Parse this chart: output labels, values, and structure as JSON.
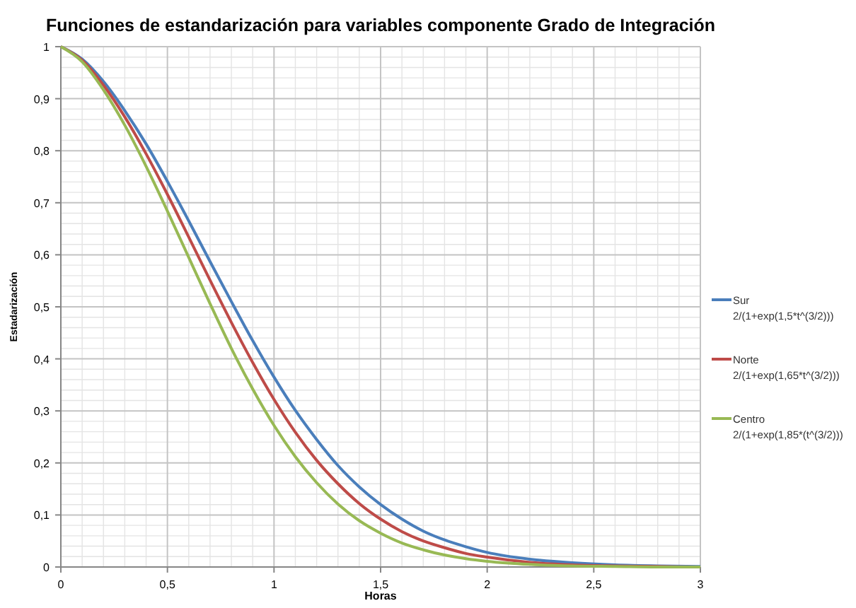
{
  "chart_data": {
    "type": "line",
    "title": "Funciones de estandarización para variables componente Grado de Integración",
    "xlabel": "Horas",
    "ylabel": "Estadarización",
    "x": [
      0,
      0.1,
      0.2,
      0.3,
      0.4,
      0.5,
      0.6,
      0.7,
      0.8,
      0.9,
      1,
      1.1,
      1.2,
      1.3,
      1.4,
      1.5,
      1.6,
      1.7,
      1.8,
      1.9,
      2,
      2.2,
      2.4,
      2.6,
      2.8,
      3
    ],
    "series": [
      {
        "name": "Sur\n2/(1+exp(1,5*t^(3/2)))",
        "color": "#4a7ebb",
        "values": [
          1,
          0.976,
          0.933,
          0.877,
          0.813,
          0.741,
          0.665,
          0.587,
          0.51,
          0.435,
          0.365,
          0.301,
          0.245,
          0.195,
          0.154,
          0.12,
          0.092,
          0.069,
          0.052,
          0.039,
          0.028,
          0.015,
          0.008,
          0.004,
          0.002,
          0.001
        ]
      },
      {
        "name": "Norte\n2/(1+exp(1,65*t^(3/2)))",
        "color": "#be4b48",
        "values": [
          1,
          0.974,
          0.926,
          0.865,
          0.794,
          0.716,
          0.634,
          0.551,
          0.47,
          0.393,
          0.322,
          0.259,
          0.205,
          0.16,
          0.122,
          0.092,
          0.068,
          0.05,
          0.037,
          0.026,
          0.019,
          0.009,
          0.004,
          0.002,
          0.001,
          0
        ]
      },
      {
        "name": "Centro\n2/(1+exp(1,85*(t^(3/2)))",
        "color": "#98b954",
        "values": [
          1,
          0.971,
          0.917,
          0.849,
          0.77,
          0.684,
          0.595,
          0.506,
          0.42,
          0.342,
          0.272,
          0.212,
          0.162,
          0.121,
          0.089,
          0.065,
          0.046,
          0.033,
          0.023,
          0.016,
          0.011,
          0.005,
          0.002,
          0.001,
          0,
          0
        ]
      }
    ],
    "xlim": [
      0,
      3
    ],
    "xticks": [
      {
        "value": 0,
        "label": "0"
      },
      {
        "value": 0.5,
        "label": "0,5"
      },
      {
        "value": 1,
        "label": "1"
      },
      {
        "value": 1.5,
        "label": "1,5"
      },
      {
        "value": 2,
        "label": "2"
      },
      {
        "value": 2.5,
        "label": "2,5"
      },
      {
        "value": 3,
        "label": "3"
      }
    ],
    "ylim": [
      0,
      1
    ],
    "yticks": [
      {
        "value": 0,
        "label": "0"
      },
      {
        "value": 0.1,
        "label": "0,1"
      },
      {
        "value": 0.2,
        "label": "0,2"
      },
      {
        "value": 0.3,
        "label": "0,3"
      },
      {
        "value": 0.4,
        "label": "0,4"
      },
      {
        "value": 0.5,
        "label": "0,5"
      },
      {
        "value": 0.6,
        "label": "0,6"
      },
      {
        "value": 0.7,
        "label": "0,7"
      },
      {
        "value": 0.8,
        "label": "0,8"
      },
      {
        "value": 0.9,
        "label": "0,9"
      },
      {
        "value": 1,
        "label": "1"
      }
    ],
    "grid": true,
    "legend": "right",
    "marker": "none",
    "line_style": "solid"
  }
}
